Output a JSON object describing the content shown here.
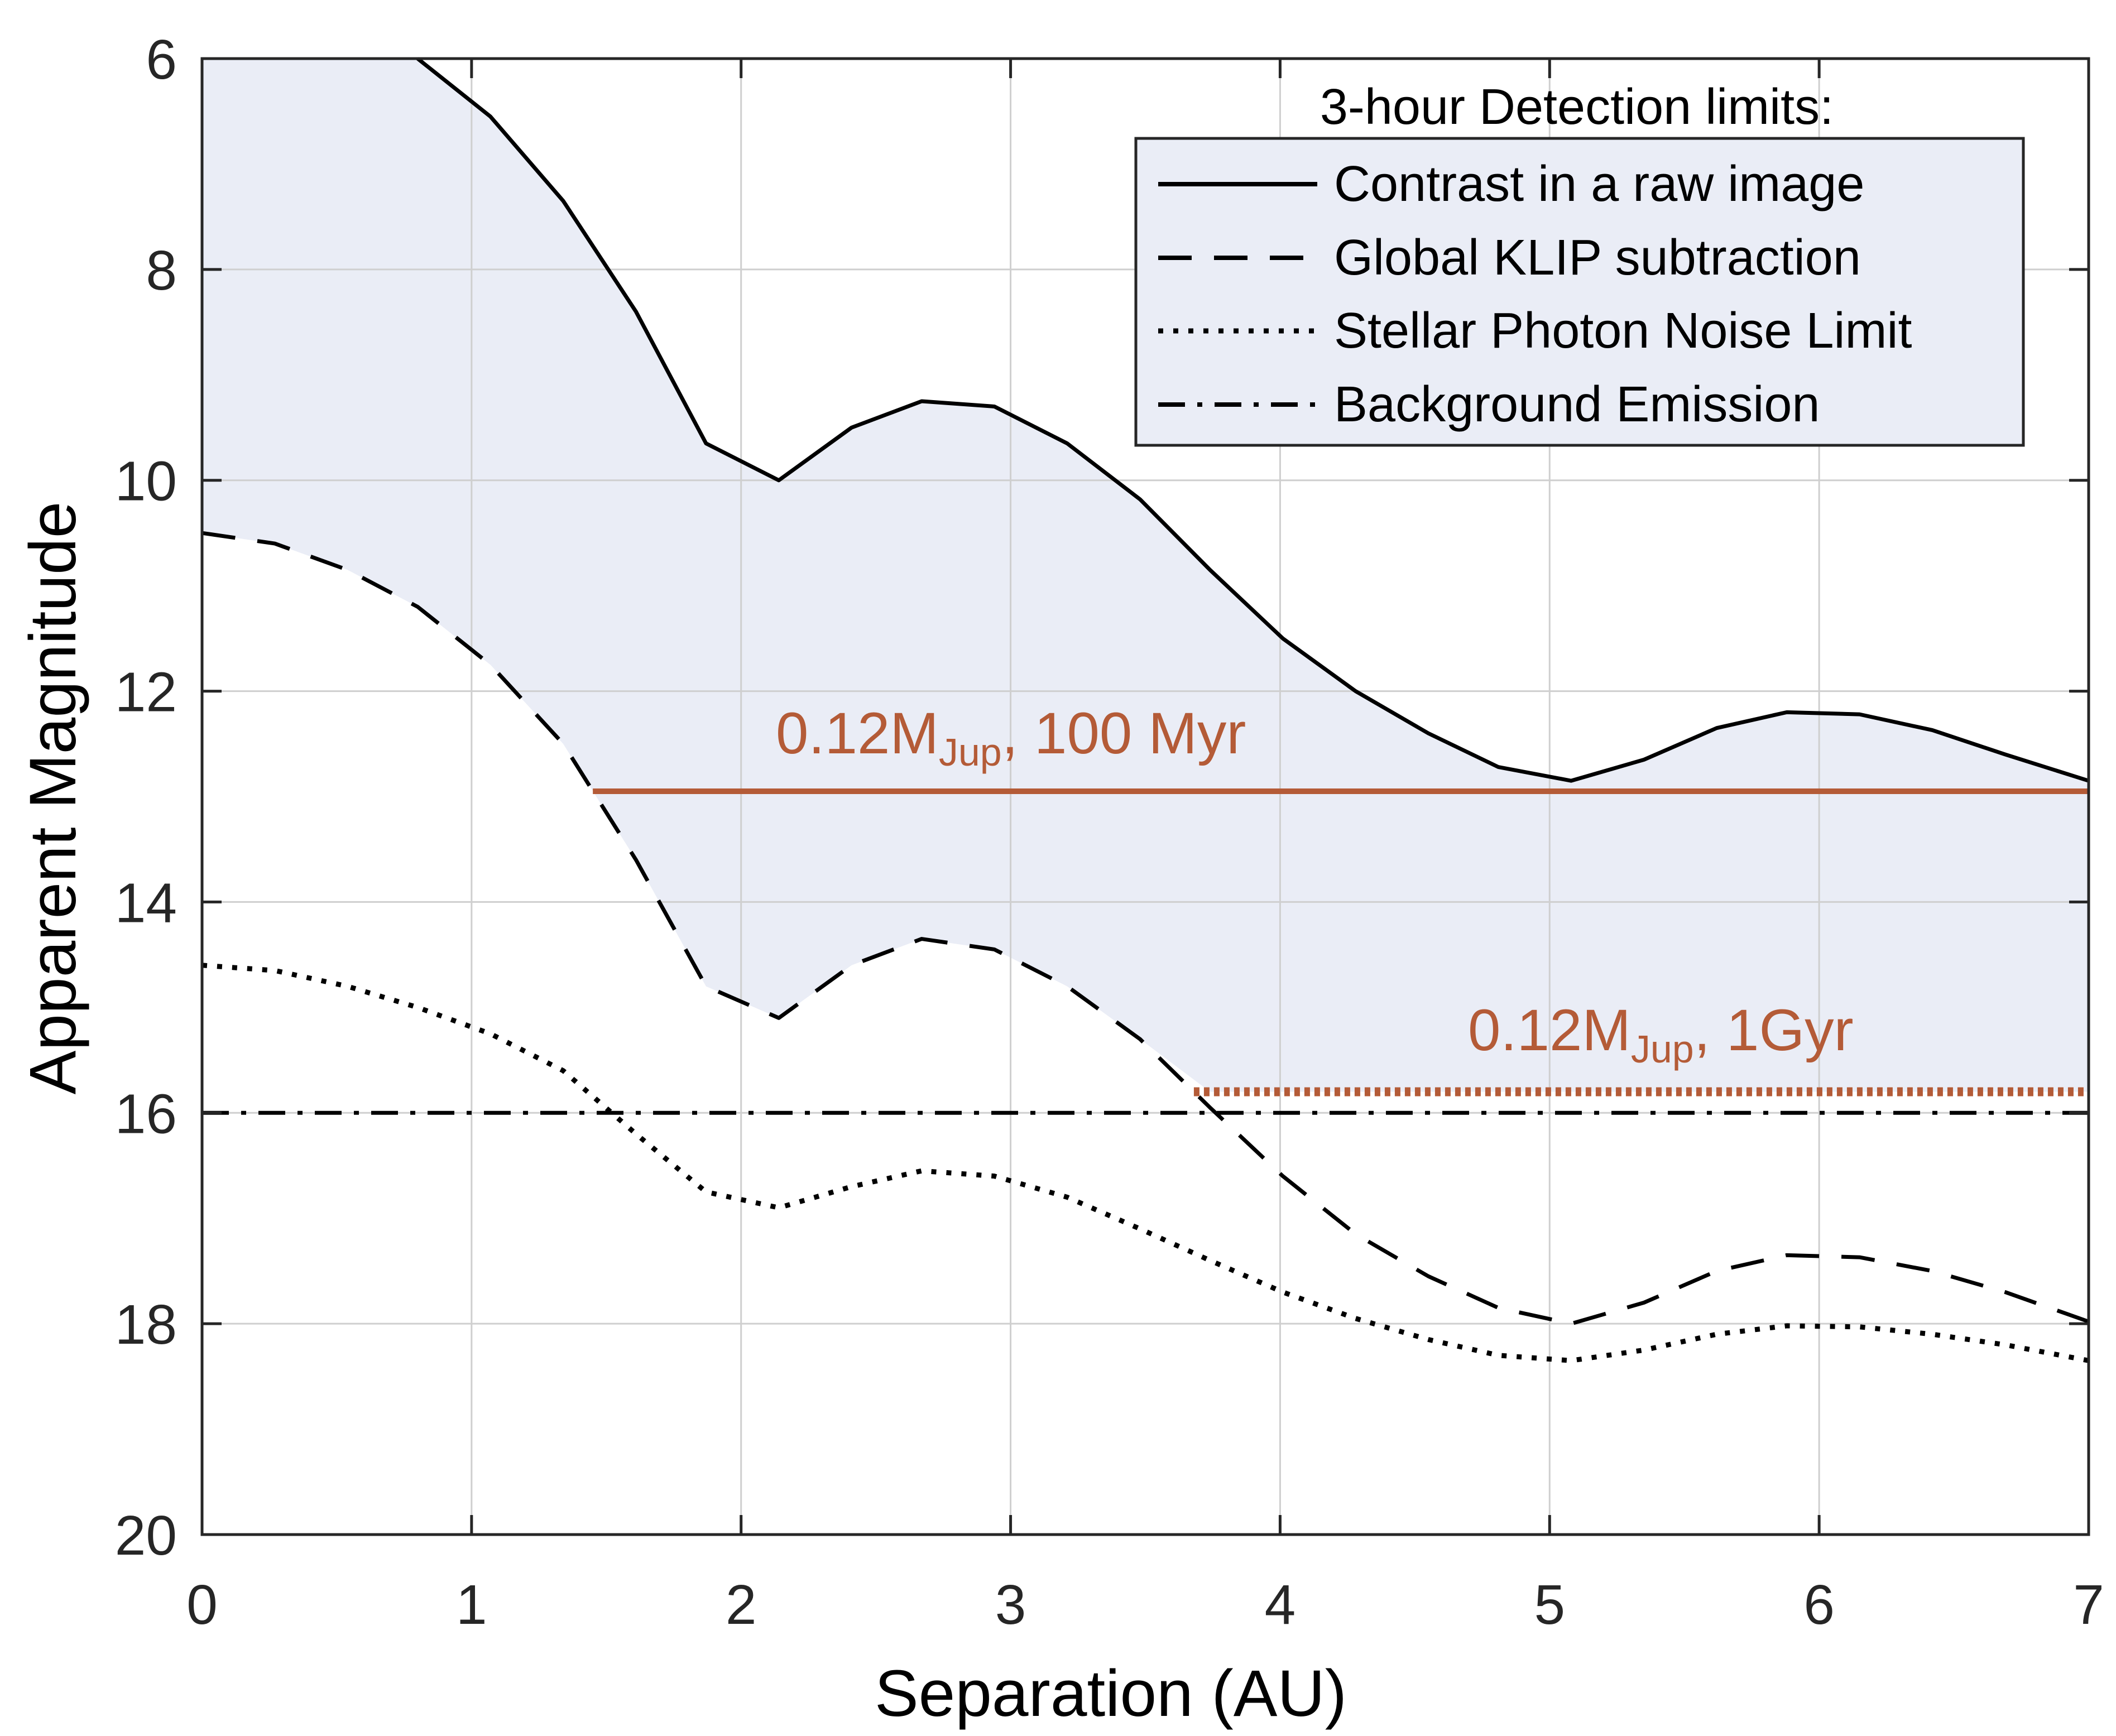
{
  "chart_data": {
    "type": "line",
    "xlabel": "Separation (AU)",
    "ylabel": "Apparent Magnitude",
    "xlim": [
      0,
      7
    ],
    "ylim": [
      20,
      6
    ],
    "y_reversed": true,
    "grid": true,
    "x_ticks": [
      0,
      1,
      2,
      3,
      4,
      5,
      6,
      7
    ],
    "y_ticks": [
      6,
      8,
      10,
      12,
      14,
      16,
      18,
      20
    ],
    "x_tick_labels": [
      "0",
      "1",
      "2",
      "3",
      "4",
      "5",
      "6",
      "7"
    ],
    "y_tick_labels": [
      "6",
      "8",
      "10",
      "12",
      "14",
      "16",
      "18",
      "20"
    ],
    "legend": {
      "title": "3-hour Detection limits:",
      "placement": "top-right",
      "entries": [
        "Contrast in a raw image",
        "Global KLIP subtraction",
        "Stellar Photon Noise Limit",
        "Background Emission"
      ]
    },
    "series": [
      {
        "name": "Contrast in a raw image",
        "style": "solid",
        "x": [
          0.8,
          1.07,
          1.34,
          1.61,
          1.87,
          2.14,
          2.41,
          2.67,
          2.94,
          3.21,
          3.48,
          3.74,
          4.01,
          4.28,
          4.55,
          4.81,
          5.08,
          5.35,
          5.62,
          5.88,
          6.15,
          6.42,
          6.69,
          7.0
        ],
        "y": [
          6.0,
          6.55,
          7.35,
          8.4,
          9.65,
          10.0,
          9.5,
          9.25,
          9.3,
          9.65,
          10.18,
          10.85,
          11.5,
          12.0,
          12.4,
          12.72,
          12.85,
          12.65,
          12.35,
          12.2,
          12.22,
          12.37,
          12.6,
          12.85
        ]
      },
      {
        "name": "Global KLIP subtraction",
        "style": "dashed",
        "x": [
          0.0,
          0.27,
          0.54,
          0.8,
          1.07,
          1.34,
          1.61,
          1.87,
          2.14,
          2.41,
          2.67,
          2.94,
          3.21,
          3.48,
          3.74,
          4.01,
          4.28,
          4.55,
          4.81,
          5.08,
          5.35,
          5.62,
          5.88,
          6.15,
          6.42,
          6.69,
          7.0
        ],
        "y": [
          10.5,
          10.6,
          10.85,
          11.2,
          11.75,
          12.5,
          13.6,
          14.8,
          15.1,
          14.6,
          14.35,
          14.45,
          14.8,
          15.3,
          15.95,
          16.6,
          17.15,
          17.55,
          17.85,
          18.0,
          17.8,
          17.5,
          17.35,
          17.37,
          17.5,
          17.7,
          17.98
        ]
      },
      {
        "name": "Stellar Photon Noise Limit",
        "style": "dotted",
        "x": [
          0.0,
          0.27,
          0.54,
          0.8,
          1.07,
          1.34,
          1.61,
          1.87,
          2.14,
          2.41,
          2.67,
          2.94,
          3.21,
          3.48,
          3.74,
          4.01,
          4.28,
          4.55,
          4.81,
          5.08,
          5.35,
          5.62,
          5.88,
          6.15,
          6.42,
          6.69,
          7.0
        ],
        "y": [
          14.6,
          14.65,
          14.8,
          15.0,
          15.25,
          15.6,
          16.2,
          16.75,
          16.9,
          16.7,
          16.55,
          16.6,
          16.8,
          17.1,
          17.4,
          17.7,
          17.95,
          18.15,
          18.3,
          18.35,
          18.25,
          18.1,
          18.02,
          18.03,
          18.1,
          18.2,
          18.35
        ]
      },
      {
        "name": "Background Emission",
        "style": "dashdot",
        "x": [
          0.0,
          7.0
        ],
        "y": [
          16.0,
          16.0
        ]
      }
    ],
    "shaded_region": {
      "description": "between raw contrast and KLIP curves",
      "color": "#eaedf6"
    },
    "reference_lines": [
      {
        "label": "0.12M",
        "subscript": "Jup",
        "suffix": ", 100 Myr",
        "x_start": 1.45,
        "x_end": 7.0,
        "y": 12.95,
        "style": "solid",
        "color": "#b45b37"
      },
      {
        "label": "0.12M",
        "subscript": "Jup",
        "suffix": ", 1Gyr",
        "x_start": 3.68,
        "x_end": 7.0,
        "y": 15.8,
        "style": "dotted",
        "color": "#b45b37"
      }
    ]
  }
}
